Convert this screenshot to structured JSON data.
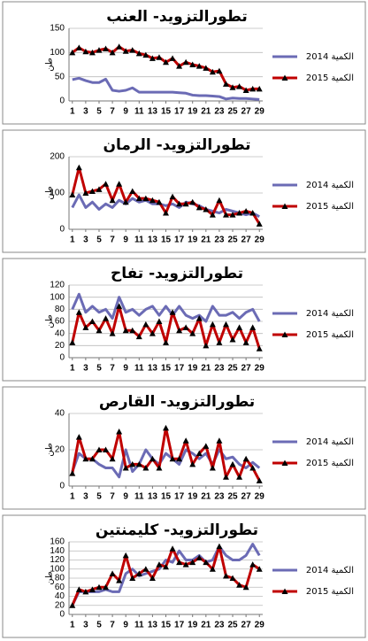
{
  "chart_data": [
    {
      "type": "line",
      "title": "تطورالتزويد- العنب",
      "y_label": "طن",
      "x": [
        1,
        2,
        3,
        4,
        5,
        6,
        7,
        8,
        9,
        10,
        11,
        12,
        13,
        14,
        15,
        16,
        17,
        18,
        19,
        20,
        21,
        22,
        23,
        24,
        25,
        26,
        27,
        28,
        29
      ],
      "xlim": [
        0.5,
        29.5
      ],
      "xticks": [
        1,
        3,
        5,
        7,
        9,
        11,
        13,
        15,
        17,
        19,
        21,
        23,
        25,
        27,
        29
      ],
      "ylim": [
        0,
        150
      ],
      "yticks": [
        0,
        50,
        100,
        150
      ],
      "grid": true,
      "legend": "right",
      "series": [
        {
          "name": "الكمية 2014",
          "color": "#6b6bb5",
          "marker": "none",
          "values": [
            44,
            47,
            42,
            38,
            38,
            45,
            22,
            20,
            22,
            27,
            18,
            18,
            18,
            18,
            18,
            18,
            17,
            16,
            12,
            11,
            11,
            10,
            9,
            4,
            6,
            5,
            5,
            4,
            3
          ]
        },
        {
          "name": "الكمية 2015",
          "color": "#c00000",
          "marker": "triangle",
          "values": [
            100,
            110,
            102,
            100,
            105,
            108,
            100,
            112,
            103,
            105,
            98,
            95,
            88,
            90,
            80,
            88,
            72,
            80,
            75,
            72,
            68,
            60,
            62,
            35,
            28,
            30,
            22,
            25,
            25
          ]
        }
      ]
    },
    {
      "type": "line",
      "title": "تطورالتزويد- الرمان",
      "y_label": "طن",
      "x": [
        1,
        2,
        3,
        4,
        5,
        6,
        7,
        8,
        9,
        10,
        11,
        12,
        13,
        14,
        15,
        16,
        17,
        18,
        19,
        20,
        21,
        22,
        23,
        24,
        25,
        26,
        27,
        28,
        29
      ],
      "xlim": [
        0.5,
        29.5
      ],
      "xticks": [
        1,
        3,
        5,
        7,
        9,
        11,
        13,
        15,
        17,
        19,
        21,
        23,
        25,
        27,
        29
      ],
      "ylim": [
        0,
        200
      ],
      "yticks": [
        0,
        100,
        200
      ],
      "grid": true,
      "legend": "right",
      "series": [
        {
          "name": "الكمية 2014",
          "color": "#6b6bb5",
          "marker": "none",
          "values": [
            60,
            95,
            60,
            75,
            55,
            70,
            60,
            80,
            70,
            85,
            75,
            80,
            70,
            70,
            65,
            70,
            60,
            75,
            70,
            65,
            55,
            50,
            45,
            55,
            50,
            45,
            40,
            45,
            35
          ]
        },
        {
          "name": "الكمية 2015",
          "color": "#c00000",
          "marker": "triangle",
          "values": [
            95,
            170,
            100,
            105,
            110,
            125,
            80,
            125,
            75,
            105,
            85,
            85,
            80,
            75,
            45,
            90,
            70,
            70,
            75,
            60,
            55,
            40,
            80,
            40,
            40,
            45,
            50,
            45,
            15
          ]
        }
      ]
    },
    {
      "type": "line",
      "title": "تطورالتزويد- تفاح",
      "y_label": "طن",
      "x": [
        1,
        2,
        3,
        4,
        5,
        6,
        7,
        8,
        9,
        10,
        11,
        12,
        13,
        14,
        15,
        16,
        17,
        18,
        19,
        20,
        21,
        22,
        23,
        24,
        25,
        26,
        27,
        28,
        29
      ],
      "xlim": [
        0.5,
        29.5
      ],
      "xticks": [
        1,
        3,
        5,
        7,
        9,
        11,
        13,
        15,
        17,
        19,
        21,
        23,
        25,
        27,
        29
      ],
      "ylim": [
        0,
        120
      ],
      "yticks": [
        0,
        20,
        40,
        60,
        80,
        100,
        120
      ],
      "grid": true,
      "legend": "right",
      "series": [
        {
          "name": "الكمية 2014",
          "color": "#6b6bb5",
          "marker": "none",
          "values": [
            80,
            105,
            75,
            85,
            75,
            80,
            65,
            100,
            75,
            80,
            70,
            80,
            85,
            70,
            85,
            70,
            85,
            70,
            65,
            70,
            60,
            85,
            70,
            70,
            75,
            65,
            75,
            80,
            60
          ]
        },
        {
          "name": "الكمية 2015",
          "color": "#c00000",
          "marker": "triangle",
          "values": [
            25,
            75,
            50,
            60,
            45,
            65,
            40,
            85,
            45,
            45,
            35,
            55,
            40,
            60,
            25,
            75,
            45,
            50,
            40,
            65,
            20,
            55,
            25,
            55,
            30,
            50,
            25,
            50,
            15
          ]
        }
      ]
    },
    {
      "type": "line",
      "title": "تطورالتزويد- القارص",
      "y_label": "طن",
      "x": [
        1,
        2,
        3,
        4,
        5,
        6,
        7,
        8,
        9,
        10,
        11,
        12,
        13,
        14,
        15,
        16,
        17,
        18,
        19,
        20,
        21,
        22,
        23,
        24,
        25,
        26,
        27,
        28,
        29
      ],
      "xlim": [
        0.5,
        29.5
      ],
      "xticks": [
        1,
        3,
        5,
        7,
        9,
        11,
        13,
        15,
        17,
        19,
        21,
        23,
        25,
        27,
        29
      ],
      "ylim": [
        0,
        40
      ],
      "yticks": [
        0,
        20,
        40
      ],
      "grid": true,
      "legend": "right",
      "series": [
        {
          "name": "الكمية 2014",
          "color": "#6b6bb5",
          "marker": "none",
          "values": [
            8,
            18,
            15,
            15,
            12,
            10,
            10,
            5,
            20,
            8,
            12,
            20,
            15,
            12,
            18,
            15,
            12,
            20,
            18,
            15,
            18,
            12,
            20,
            15,
            16,
            12,
            10,
            13,
            10
          ]
        },
        {
          "name": "الكمية 2015",
          "color": "#c00000",
          "marker": "triangle",
          "values": [
            7,
            27,
            15,
            15,
            20,
            20,
            15,
            30,
            10,
            12,
            12,
            10,
            15,
            10,
            32,
            15,
            15,
            25,
            12,
            18,
            22,
            10,
            25,
            5,
            12,
            5,
            15,
            10,
            3
          ]
        }
      ]
    },
    {
      "type": "line",
      "title": "تطورالتزويد- كليمنتين",
      "y_label": "طن",
      "x": [
        1,
        2,
        3,
        4,
        5,
        6,
        7,
        8,
        9,
        10,
        11,
        12,
        13,
        14,
        15,
        16,
        17,
        18,
        19,
        20,
        21,
        22,
        23,
        24,
        25,
        26,
        27,
        28,
        29
      ],
      "xlim": [
        0.5,
        29.5
      ],
      "xticks": [
        1,
        3,
        5,
        7,
        9,
        11,
        13,
        15,
        17,
        19,
        21,
        23,
        25,
        27,
        29
      ],
      "ylim": [
        0,
        160
      ],
      "yticks": [
        0,
        20,
        40,
        60,
        80,
        100,
        120,
        140,
        160
      ],
      "grid": true,
      "legend": "right",
      "series": [
        {
          "name": "الكمية 2014",
          "color": "#6b6bb5",
          "marker": "none",
          "values": [
            20,
            50,
            50,
            50,
            50,
            55,
            50,
            50,
            90,
            100,
            85,
            90,
            95,
            100,
            120,
            115,
            140,
            120,
            120,
            130,
            115,
            120,
            150,
            130,
            120,
            120,
            130,
            155,
            130
          ]
        },
        {
          "name": "الكمية 2015",
          "color": "#c00000",
          "marker": "triangle",
          "values": [
            20,
            55,
            50,
            55,
            60,
            60,
            90,
            75,
            130,
            80,
            90,
            100,
            80,
            110,
            105,
            145,
            115,
            110,
            115,
            125,
            115,
            100,
            150,
            85,
            80,
            65,
            60,
            110,
            100
          ]
        }
      ]
    }
  ]
}
